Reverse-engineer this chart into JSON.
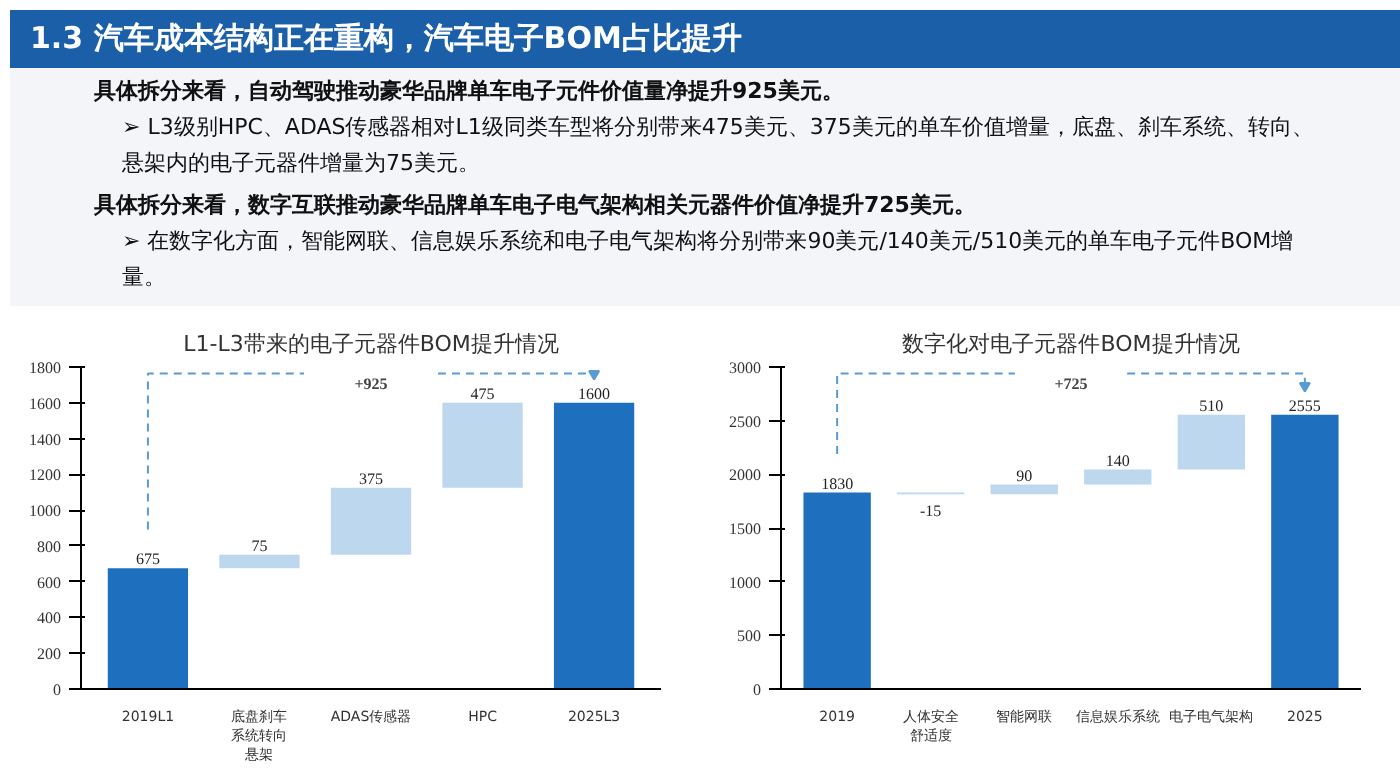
{
  "chart_data": [
    {
      "type": "other",
      "title": "1.3 汽车成本结构正在重构，汽车电子BOM占比提升",
      "annotations": [
        "具体拆分来看，自动驾驶推动豪华品牌单车电子元件价值量净提升925美元。",
        "➢ L3级别HPC、ADAS传感器相对L1级同类车型将分别带来475美元、375美元的单车价值增量，底盘、刹车系统、转向、悬架内的电子元器件增量为75美元。",
        "具体拆分来看，数字互联推动豪华品牌单车电子电气架构相关元器件价值净提升725美元。",
        "➢ 在数字化方面，智能网联、信息娱乐系统和电子电气架构将分别带来90美元/140美元/510美元的单车电子元件BOM增量。"
      ]
    },
    {
      "type": "bar",
      "title": "L1-L3带来的电子元器件BOM提升情况",
      "annotations": [
        "+925"
      ],
      "categories": [
        "2019L1",
        "底盘刹车系统转向悬架",
        "ADAS传感器",
        "HPC",
        "2025L3"
      ],
      "values": [
        675,
        75,
        375,
        475,
        1600
      ],
      "base": [
        0,
        675,
        750,
        1125,
        0
      ],
      "colors": [
        "#1f6fbf",
        "#bdd7ee",
        "#bdd7ee",
        "#bdd7ee",
        "#1f6fbf"
      ],
      "data_labels": true,
      "ylim": [
        0,
        1800
      ],
      "yticks": [
        0,
        200,
        400,
        600,
        800,
        1000,
        1200,
        1400,
        1600,
        1800
      ],
      "grid": false
    },
    {
      "type": "bar",
      "title": "数字化对电子元器件BOM提升情况",
      "annotations": [
        "+725"
      ],
      "categories": [
        "2019",
        "人体安全舒适度",
        "智能网联",
        "信息娱乐系统",
        "电子电气架构",
        "2025"
      ],
      "values": [
        1830,
        -15,
        90,
        140,
        510,
        2555
      ],
      "base": [
        0,
        1830,
        1815,
        1905,
        2045,
        0
      ],
      "colors": [
        "#1f6fbf",
        "#bdd7ee",
        "#bdd7ee",
        "#bdd7ee",
        "#bdd7ee",
        "#1f6fbf"
      ],
      "data_labels": true,
      "ylim": [
        0,
        3000
      ],
      "yticks": [
        0,
        500,
        1000,
        1500,
        2000,
        2500,
        3000
      ],
      "grid": false
    }
  ]
}
